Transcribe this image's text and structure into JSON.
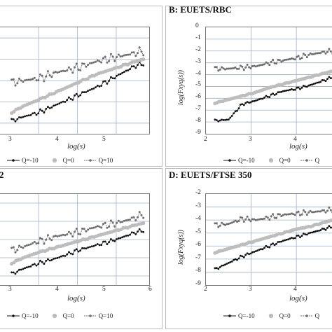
{
  "panels": [
    {
      "id": "A",
      "title": "",
      "xlabel": "log(s)",
      "ylabel": "",
      "xticks": [
        "3",
        "4",
        "5"
      ],
      "yticks": [],
      "legend": [
        "Q=-10",
        "Q=0",
        "Q=10"
      ]
    },
    {
      "id": "B",
      "title": "B: EUETS/RBC",
      "xlabel": "log(s)",
      "ylabel": "log(Fxyq(s))",
      "xticks": [
        "2",
        "3",
        "4"
      ],
      "yticks": [
        "0",
        "-1",
        "-2",
        "-3",
        "-4",
        "-5",
        "-6",
        "-7",
        "-8",
        "-9"
      ],
      "legend": [
        "Q=-10",
        "Q=0",
        "Q"
      ]
    },
    {
      "id": "C",
      "title": "2",
      "xlabel": "log(s)",
      "ylabel": "",
      "xticks": [
        "3",
        "4",
        "5",
        "6"
      ],
      "yticks": [],
      "legend": [
        "Q=-10",
        "Q=0",
        "Q=10"
      ]
    },
    {
      "id": "D",
      "title": "D: EUETS/FTSE 350",
      "xlabel": "log(s)",
      "ylabel": "log(Fxyq(s))",
      "xticks": [
        "2",
        "3",
        "4"
      ],
      "yticks": [
        "-2",
        "-3",
        "-4",
        "-5",
        "-6",
        "-7",
        "-8",
        "-9"
      ],
      "legend": [
        "Q=-10",
        "Q=0",
        "Q"
      ]
    }
  ],
  "chart_data": [
    {
      "type": "scatter",
      "title": "",
      "xlabel": "log(s)",
      "series": [
        {
          "name": "Q=-10",
          "x": [
            2.3,
            2.6,
            3.0,
            3.5,
            4.0,
            4.5,
            5.0,
            5.5,
            5.7
          ],
          "y": [
            -5.9,
            -5.7,
            -5.5,
            -5.1,
            -4.7,
            -4.3,
            -3.8,
            -3.3,
            -3.2
          ]
        },
        {
          "name": "Q=0",
          "x": [
            2.3,
            2.6,
            3.0,
            3.5,
            4.0,
            4.5,
            5.0,
            5.5,
            5.7
          ],
          "y": [
            -5.5,
            -5.2,
            -4.9,
            -4.5,
            -4.1,
            -3.7,
            -3.4,
            -3.1,
            -3.0
          ]
        },
        {
          "name": "Q=10",
          "x": [
            2.3,
            2.6,
            3.0,
            3.5,
            4.0,
            4.5,
            5.0,
            5.5,
            5.7
          ],
          "y": [
            -4.1,
            -4.0,
            -3.9,
            -3.6,
            -3.4,
            -3.1,
            -2.9,
            -2.7,
            -2.6
          ]
        }
      ],
      "xlim": [
        2.0,
        5.85
      ],
      "ylim": [
        -6.5,
        -1.5
      ],
      "grid": true,
      "legend_position": "bottom"
    },
    {
      "type": "scatter",
      "title": "B: EUETS/RBC",
      "xlabel": "log(s)",
      "ylabel": "log(Fxyq(s))",
      "series": [
        {
          "name": "Q=-10",
          "x": [
            2.2,
            2.5,
            2.8,
            3.1,
            3.4,
            3.7,
            4.0,
            4.3,
            4.6,
            4.8
          ],
          "y": [
            -7.9,
            -7.8,
            -6.5,
            -6.2,
            -5.8,
            -5.4,
            -5.2,
            -4.9,
            -4.5,
            -4.2
          ]
        },
        {
          "name": "Q=0",
          "x": [
            2.2,
            2.5,
            2.8,
            3.1,
            3.4,
            3.7,
            4.0,
            4.3,
            4.6,
            4.8
          ],
          "y": [
            -6.4,
            -6.1,
            -5.8,
            -5.5,
            -5.1,
            -4.8,
            -4.5,
            -4.2,
            -3.9,
            -3.7
          ]
        },
        {
          "name": "Q",
          "x": [
            2.2,
            2.5,
            2.8,
            3.1,
            3.4,
            3.7,
            4.0,
            4.3,
            4.6,
            4.8
          ],
          "y": [
            -3.5,
            -3.5,
            -3.4,
            -3.3,
            -3.0,
            -2.8,
            -2.6,
            -2.3,
            -2.1,
            -2.0
          ]
        }
      ],
      "xlim": [
        2,
        4.85
      ],
      "ylim": [
        -9,
        0
      ],
      "grid": true,
      "legend_position": "bottom"
    },
    {
      "type": "scatter",
      "title": "2",
      "xlabel": "log(s)",
      "series": [
        {
          "name": "Q=-10",
          "x": [
            2.3,
            2.6,
            3.0,
            3.5,
            4.0,
            4.5,
            5.0,
            5.5,
            5.7
          ],
          "y": [
            -5.9,
            -5.6,
            -5.3,
            -5.0,
            -4.6,
            -4.3,
            -4.0,
            -3.6,
            -3.5
          ]
        },
        {
          "name": "Q=0",
          "x": [
            2.3,
            2.6,
            3.0,
            3.5,
            4.0,
            4.5,
            5.0,
            5.5,
            5.7
          ],
          "y": [
            -5.3,
            -5.0,
            -4.7,
            -4.4,
            -4.1,
            -3.8,
            -3.5,
            -3.2,
            -3.1
          ]
        },
        {
          "name": "Q=10",
          "x": [
            2.3,
            2.6,
            3.0,
            3.5,
            4.0,
            4.5,
            5.0,
            5.5,
            5.7
          ],
          "y": [
            -4.6,
            -4.4,
            -4.1,
            -3.8,
            -3.6,
            -3.3,
            -3.1,
            -2.8,
            -2.6
          ]
        }
      ],
      "xlim": [
        2.0,
        5.85
      ],
      "ylim": [
        -6.5,
        -1.5
      ],
      "grid": true,
      "legend_position": "bottom"
    },
    {
      "type": "scatter",
      "title": "D: EUETS/FTSE 350",
      "xlabel": "log(s)",
      "ylabel": "log(Fxyq(s))",
      "series": [
        {
          "name": "Q=-10",
          "x": [
            2.2,
            2.5,
            2.8,
            3.1,
            3.4,
            3.7,
            4.0,
            4.3,
            4.6,
            4.8
          ],
          "y": [
            -7.8,
            -7.3,
            -6.8,
            -6.4,
            -6.0,
            -5.6,
            -5.3,
            -5.0,
            -4.7,
            -4.5
          ]
        },
        {
          "name": "Q=0",
          "x": [
            2.2,
            2.5,
            2.8,
            3.1,
            3.4,
            3.7,
            4.0,
            4.3,
            4.6,
            4.8
          ],
          "y": [
            -6.5,
            -6.2,
            -5.9,
            -5.6,
            -5.3,
            -5.0,
            -4.7,
            -4.5,
            -4.2,
            -4.0
          ]
        },
        {
          "name": "Q",
          "x": [
            2.2,
            2.5,
            2.8,
            3.1,
            3.4,
            3.7,
            4.0,
            4.3,
            4.6,
            4.8
          ],
          "y": [
            -4.4,
            -4.3,
            -3.9,
            -4.0,
            -3.8,
            -3.6,
            -3.5,
            -3.4,
            -3.3,
            -3.2
          ]
        }
      ],
      "xlim": [
        2,
        4.85
      ],
      "ylim": [
        -9,
        -2
      ],
      "grid": true,
      "legend_position": "bottom"
    }
  ],
  "colors": {
    "q_neg10": "#111111",
    "q_0": "#bdbdbd",
    "q_10": "#6e6e6e",
    "grid": "#9db0c8"
  }
}
